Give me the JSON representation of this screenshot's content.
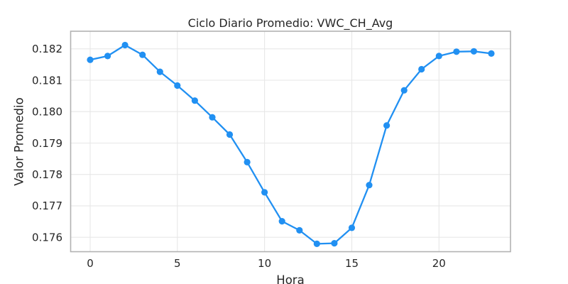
{
  "figure": {
    "background": "#ffffff"
  },
  "chart_data": {
    "type": "line",
    "title": "Ciclo Diario Promedio: VWC_CH_Avg",
    "xlabel": "Hora",
    "ylabel": "Valor Promedio",
    "series_name": "VWC_CH_Avg",
    "x": [
      0,
      1,
      2,
      3,
      4,
      5,
      6,
      7,
      8,
      9,
      10,
      11,
      12,
      13,
      14,
      15,
      16,
      17,
      18,
      19,
      20,
      21,
      22,
      23
    ],
    "values": [
      0.18165,
      0.18177,
      0.18212,
      0.18181,
      0.18127,
      0.18083,
      0.18035,
      0.17982,
      0.17927,
      0.17839,
      0.17743,
      0.17651,
      0.17622,
      0.17579,
      0.17581,
      0.1763,
      0.17766,
      0.17956,
      0.18068,
      0.18135,
      0.18177,
      0.18191,
      0.18192,
      0.18185
    ],
    "x_ticks": [
      0,
      5,
      10,
      15,
      20
    ],
    "x_tick_labels": [
      "0",
      "5",
      "10",
      "15",
      "20"
    ],
    "y_ticks": [
      0.176,
      0.177,
      0.178,
      0.179,
      0.18,
      0.181,
      0.182
    ],
    "y_tick_labels": [
      "0.176",
      "0.177",
      "0.178",
      "0.179",
      "0.180",
      "0.181",
      "0.182"
    ],
    "xlim": [
      -1.12,
      24.1
    ],
    "ylim": [
      0.17554,
      0.18256
    ],
    "grid": true,
    "legend": false,
    "marker": "circle",
    "line_color": "#2190F2",
    "marker_color": "#2190F2",
    "grid_color": "#E7E7E7",
    "spine_color": "#B2B2B2",
    "text_color": "#262626"
  }
}
